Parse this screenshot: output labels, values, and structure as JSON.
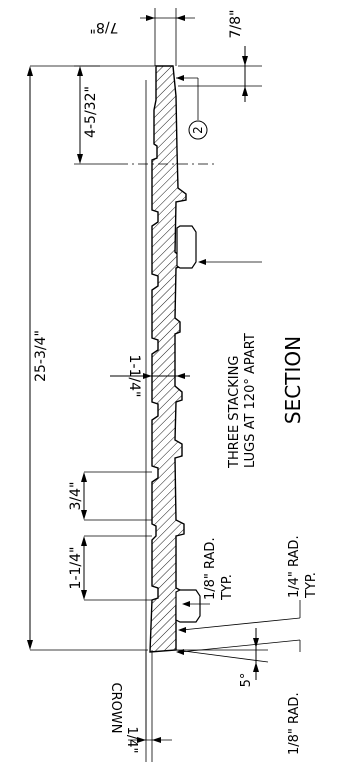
{
  "drawing": {
    "title": "SECTION",
    "dimensions": {
      "top_offset": "7/8\"",
      "right_offset": "7/8\"",
      "upper_height": "4-5/32\"",
      "overall_height": "25-3/4\"",
      "thickness": "1-1/4\"",
      "rib_spacing": "3/4\"",
      "lower_height": "1-1/4\"",
      "crown_value": "1/4\"",
      "crown_label": "CROWN",
      "angle": "5°"
    },
    "notes": {
      "balloon": "2",
      "lugs_line1": "THREE STACKING",
      "lugs_line2": "LUGS AT 120° APART",
      "rad1_line1": "1/8\" RAD.",
      "rad1_line2": "TYP.",
      "rad2_line1": "1/4\" RAD.",
      "rad2_line2": "TYP.",
      "rad3": "1/8\" RAD."
    }
  }
}
